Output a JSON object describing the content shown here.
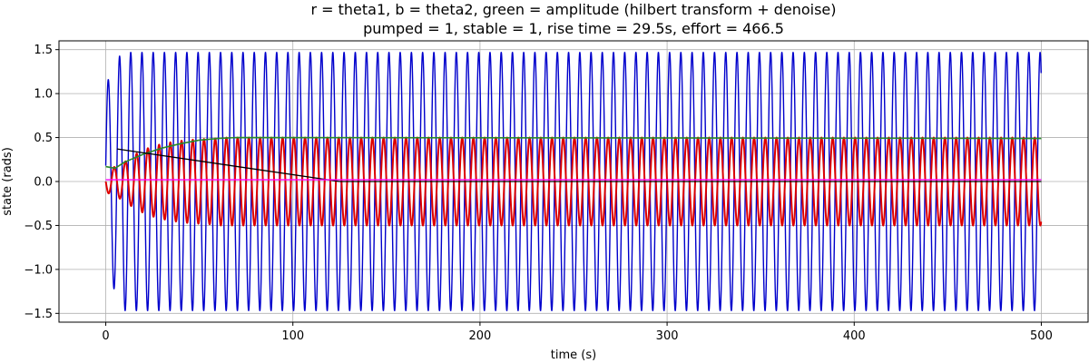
{
  "chart_data": {
    "type": "line",
    "title": "r = theta1, b = theta2, green = amplitude (hilbert transform + denoise)",
    "subtitle": "pumped = 1, stable = 1, rise time = 29.5s, effort = 466.5",
    "xlabel": "time (s)",
    "ylabel": "state (rads)",
    "xlim": [
      -25,
      525
    ],
    "ylim": [
      -1.6,
      1.6
    ],
    "xticks": [
      0,
      100,
      200,
      300,
      400,
      500
    ],
    "xtick_labels": [
      "0",
      "100",
      "200",
      "300",
      "400",
      "500"
    ],
    "yticks": [
      -1.5,
      -1.0,
      -0.5,
      0.0,
      0.5,
      1.0,
      1.5
    ],
    "ytick_labels": [
      "−1.5",
      "−1.0",
      "−0.5",
      "0.0",
      "0.5",
      "1.0",
      "1.5"
    ],
    "grid": true,
    "series": [
      {
        "role": "theta2",
        "color": "#0000cc",
        "x_range": [
          0,
          500
        ],
        "period": 6.0,
        "steady_amplitude": 1.47,
        "start_value": 0.18,
        "early_peak": 1.16
      },
      {
        "role": "theta1",
        "color": "#dd0000",
        "x_range": [
          0,
          500
        ],
        "period": 6.0,
        "steady_amplitude": 0.5,
        "start_value": 0.0,
        "early_min": -0.13
      },
      {
        "role": "amplitude",
        "color": "#2a8a2a",
        "points": [
          [
            0,
            0.17
          ],
          [
            5,
            0.15
          ],
          [
            10,
            0.22
          ],
          [
            20,
            0.31
          ],
          [
            30,
            0.38
          ],
          [
            40,
            0.43
          ],
          [
            50,
            0.47
          ],
          [
            60,
            0.49
          ],
          [
            70,
            0.5
          ],
          [
            500,
            0.49
          ]
        ]
      },
      {
        "role": "control",
        "color": "#000000",
        "points": [
          [
            6,
            0.37
          ],
          [
            125,
            0.0
          ],
          [
            500,
            0.0
          ]
        ]
      },
      {
        "role": "baseline",
        "color": "#ff00ff",
        "points": [
          [
            0,
            0.02
          ],
          [
            500,
            0.02
          ]
        ]
      }
    ]
  }
}
